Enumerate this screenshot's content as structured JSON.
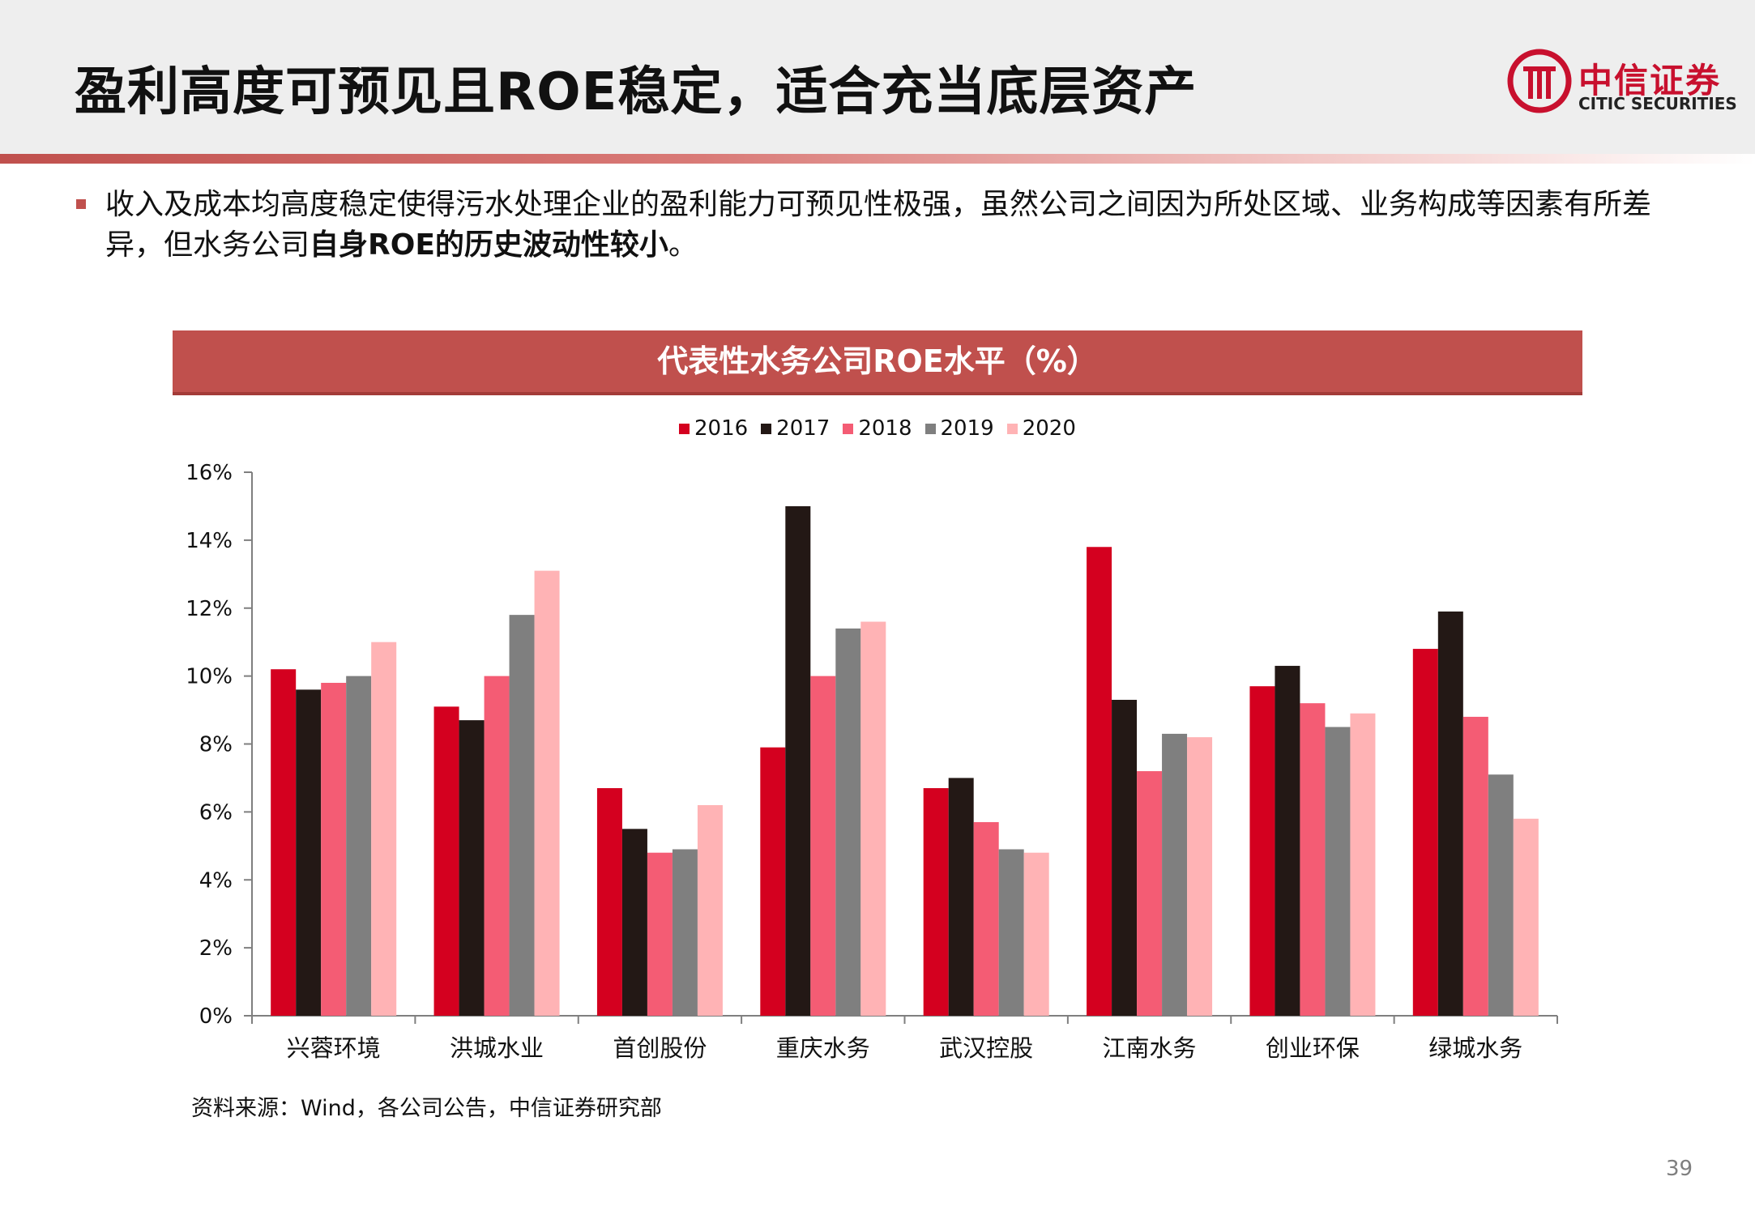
{
  "page": {
    "title": "盈利高度可预见且ROE稳定，适合充当底层资产",
    "logo_name": "中信证券",
    "logo_en": "CITIC SECURITIES",
    "bullet_part1": "收入及成本均高度稳定使得污水处理企业的盈利能力可预见性极强，虽然公司之间因为所处区域、业务构成等因素有所差异，但水务公司",
    "bullet_bold": "自身ROE的历史波动性较小",
    "bullet_end": "。",
    "source": "资料来源：Wind，各公司公告，中信证券研究部",
    "page_number": "39"
  },
  "chart_data": {
    "type": "bar",
    "title": "代表性水务公司ROE水平（%）",
    "categories": [
      "兴蓉环境",
      "洪城水业",
      "首创股份",
      "重庆水务",
      "武汉控股",
      "江南水务",
      "创业环保",
      "绿城水务"
    ],
    "series": [
      {
        "name": "2016",
        "color": "#d4001f",
        "values": [
          10.2,
          9.1,
          6.7,
          7.9,
          6.7,
          13.8,
          9.7,
          10.8
        ]
      },
      {
        "name": "2017",
        "color": "#231815",
        "values": [
          9.6,
          8.7,
          5.5,
          15.0,
          7.0,
          9.3,
          10.3,
          11.9
        ]
      },
      {
        "name": "2018",
        "color": "#f45c74",
        "values": [
          9.8,
          10.0,
          4.8,
          10.0,
          5.7,
          7.2,
          9.2,
          8.8
        ]
      },
      {
        "name": "2019",
        "color": "#7f7f7f",
        "values": [
          10.0,
          11.8,
          4.9,
          11.4,
          4.9,
          8.3,
          8.5,
          7.1
        ]
      },
      {
        "name": "2020",
        "color": "#ffb3b5",
        "values": [
          11.0,
          13.1,
          6.2,
          11.6,
          4.8,
          8.2,
          8.9,
          5.8
        ]
      }
    ],
    "ylim": [
      0,
      16
    ],
    "yticks": [
      0,
      2,
      4,
      6,
      8,
      10,
      12,
      14,
      16
    ],
    "ytick_suffix": "%",
    "legend_position": "top-center",
    "grid": false
  }
}
